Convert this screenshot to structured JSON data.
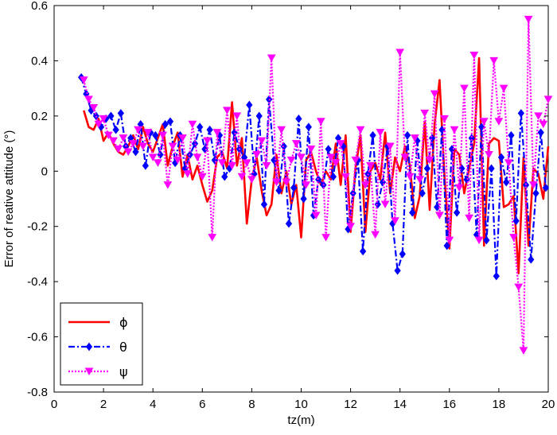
{
  "chart_data": {
    "type": "line",
    "title": "",
    "xlabel": "tz(m)",
    "ylabel": "Error of reative attitude (°)",
    "xlim": [
      0,
      20
    ],
    "ylim": [
      -0.8,
      0.6
    ],
    "xticks": [
      "0",
      "2",
      "4",
      "6",
      "8",
      "10",
      "12",
      "14",
      "16",
      "18",
      "20"
    ],
    "yticks": [
      "0.6",
      "0.4",
      "0.2",
      "0",
      "-0.2",
      "-0.4",
      "-0.6",
      "-0.8"
    ],
    "grid": false,
    "legend": "bottom-left",
    "series": [
      {
        "name": "ϕ",
        "color": "#ff0000",
        "style": "solid",
        "marker": "none",
        "x": [
          1.2,
          1.4,
          1.6,
          1.8,
          2.0,
          2.2,
          2.4,
          2.6,
          2.8,
          3.0,
          3.2,
          3.4,
          3.6,
          3.8,
          4.0,
          4.2,
          4.4,
          4.6,
          4.8,
          5.0,
          5.2,
          5.4,
          5.6,
          5.8,
          6.0,
          6.2,
          6.4,
          6.6,
          6.8,
          7.0,
          7.2,
          7.4,
          7.6,
          7.8,
          8.0,
          8.2,
          8.4,
          8.6,
          8.8,
          9.0,
          9.2,
          9.4,
          9.6,
          9.8,
          10.0,
          10.2,
          10.4,
          10.6,
          10.8,
          11.0,
          11.2,
          11.4,
          11.6,
          11.8,
          12.0,
          12.2,
          12.4,
          12.6,
          12.8,
          13.0,
          13.2,
          13.4,
          13.6,
          13.8,
          14.0,
          14.2,
          14.4,
          14.6,
          14.8,
          15.0,
          15.2,
          15.4,
          15.6,
          15.8,
          16.0,
          16.2,
          16.4,
          16.6,
          16.8,
          17.0,
          17.2,
          17.4,
          17.6,
          17.8,
          18.0,
          18.2,
          18.4,
          18.6,
          18.8,
          19.0,
          19.2,
          19.4,
          19.6,
          19.8,
          20.0
        ],
        "values": [
          0.22,
          0.16,
          0.15,
          0.19,
          0.11,
          0.14,
          0.1,
          0.07,
          0.06,
          0.09,
          0.13,
          0.08,
          0.16,
          0.1,
          0.07,
          0.12,
          0.17,
          0.02,
          0.09,
          0.14,
          -0.02,
          0.06,
          -0.03,
          0.02,
          -0.05,
          -0.11,
          -0.07,
          0.05,
          0.07,
          0.01,
          0.25,
          0.02,
          0.12,
          -0.19,
          -0.03,
          0.05,
          -0.07,
          -0.16,
          -0.12,
          0.06,
          -0.08,
          0.0,
          -0.12,
          -0.05,
          -0.24,
          0.04,
          0.07,
          0.0,
          -0.05,
          0.0,
          -0.03,
          0.1,
          -0.05,
          0.13,
          -0.22,
          0.01,
          0.13,
          -0.22,
          0.0,
          0.03,
          -0.03,
          0.14,
          -0.08,
          0.05,
          0.0,
          0.09,
          0.02,
          -0.17,
          -0.09,
          0.18,
          -0.14,
          0.17,
          0.33,
          -0.02,
          -0.28,
          0.08,
          0.06,
          -0.08,
          0.01,
          0.1,
          0.41,
          -0.27,
          0.1,
          0.12,
          0.11,
          -0.13,
          -0.12,
          -0.09,
          -0.37,
          0.05,
          -0.27,
          0.01,
          -0.01,
          -0.1,
          0.09
        ]
      },
      {
        "name": "θ",
        "color": "#0000ff",
        "style": "dashdot",
        "marker": "diamond",
        "x": [
          1.1,
          1.3,
          1.5,
          1.7,
          1.9,
          2.1,
          2.3,
          2.5,
          2.7,
          2.9,
          3.1,
          3.3,
          3.5,
          3.7,
          3.9,
          4.1,
          4.3,
          4.5,
          4.7,
          4.9,
          5.1,
          5.3,
          5.5,
          5.7,
          5.9,
          6.1,
          6.3,
          6.5,
          6.7,
          6.9,
          7.1,
          7.3,
          7.5,
          7.7,
          7.9,
          8.1,
          8.3,
          8.5,
          8.7,
          8.9,
          9.1,
          9.3,
          9.5,
          9.7,
          9.9,
          10.1,
          10.3,
          10.5,
          10.7,
          10.9,
          11.1,
          11.3,
          11.5,
          11.7,
          11.9,
          12.1,
          12.3,
          12.5,
          12.7,
          12.9,
          13.1,
          13.3,
          13.5,
          13.7,
          13.9,
          14.1,
          14.3,
          14.5,
          14.7,
          14.9,
          15.1,
          15.3,
          15.5,
          15.7,
          15.9,
          16.1,
          16.3,
          16.5,
          16.7,
          16.9,
          17.1,
          17.3,
          17.5,
          17.7,
          17.9,
          18.1,
          18.3,
          18.5,
          18.7,
          18.9,
          19.1,
          19.3,
          19.5,
          19.7,
          19.9
        ],
        "values": [
          0.34,
          0.28,
          0.22,
          0.2,
          0.16,
          0.19,
          0.2,
          0.15,
          0.21,
          0.09,
          0.12,
          0.07,
          0.17,
          0.02,
          0.14,
          0.13,
          0.06,
          0.17,
          0.18,
          0.03,
          0.13,
          0.01,
          0.06,
          0.1,
          0.16,
          0.08,
          0.15,
          0.04,
          0.13,
          -0.02,
          0.01,
          0.14,
          0.08,
          0.05,
          0.24,
          -0.01,
          0.2,
          -0.12,
          0.26,
          0.04,
          -0.07,
          0.09,
          -0.19,
          -0.06,
          0.19,
          -0.1,
          0.16,
          -0.16,
          -0.03,
          -0.05,
          0.08,
          -0.02,
          0.12,
          0.09,
          -0.21,
          -0.08,
          0.04,
          -0.29,
          -0.01,
          0.13,
          -0.12,
          -0.04,
          0.09,
          -0.19,
          -0.36,
          -0.3,
          0.13,
          -0.15,
          0.11,
          -0.08,
          0.01,
          0.12,
          -0.13,
          0.15,
          -0.27,
          0.08,
          -0.15,
          0.01,
          -0.03,
          0.12,
          -0.23,
          0.16,
          -0.25,
          0.01,
          -0.38,
          0.05,
          -0.04,
          0.13,
          -0.18,
          0.21,
          -0.05,
          -0.32,
          -0.08,
          0.14,
          -0.06
        ]
      },
      {
        "name": "ψ",
        "color": "#ff00ff",
        "style": "dotted",
        "marker": "triangle-down",
        "x": [
          1.2,
          1.4,
          1.6,
          1.8,
          2.0,
          2.2,
          2.4,
          2.6,
          2.8,
          3.0,
          3.2,
          3.4,
          3.6,
          3.8,
          4.0,
          4.2,
          4.4,
          4.6,
          4.8,
          5.0,
          5.2,
          5.4,
          5.6,
          5.8,
          6.0,
          6.2,
          6.4,
          6.6,
          6.8,
          7.0,
          7.2,
          7.4,
          7.6,
          7.8,
          8.0,
          8.2,
          8.4,
          8.6,
          8.8,
          9.0,
          9.2,
          9.4,
          9.6,
          9.8,
          10.0,
          10.2,
          10.4,
          10.6,
          10.8,
          11.0,
          11.2,
          11.4,
          11.6,
          11.8,
          12.0,
          12.2,
          12.4,
          12.6,
          12.8,
          13.0,
          13.2,
          13.4,
          13.6,
          13.8,
          14.0,
          14.2,
          14.4,
          14.6,
          14.8,
          15.0,
          15.2,
          15.4,
          15.6,
          15.8,
          16.0,
          16.2,
          16.4,
          16.6,
          16.8,
          17.0,
          17.2,
          17.4,
          17.6,
          17.8,
          18.0,
          18.2,
          18.4,
          18.6,
          18.8,
          19.0,
          19.2,
          19.4,
          19.6,
          19.8,
          20.0
        ],
        "values": [
          0.33,
          0.26,
          0.23,
          0.17,
          0.19,
          0.13,
          0.11,
          0.08,
          0.12,
          0.07,
          0.1,
          0.15,
          0.09,
          0.14,
          0.05,
          0.03,
          0.13,
          -0.05,
          0.09,
          0.04,
          0.12,
          -0.01,
          0.17,
          0.05,
          -0.02,
          0.11,
          -0.24,
          0.14,
          0.03,
          0.22,
          0.02,
          0.2,
          -0.02,
          0.03,
          -0.03,
          0.06,
          0.11,
          0.02,
          0.41,
          -0.04,
          0.15,
          -0.04,
          0.04,
          0.1,
          0.05,
          -0.05,
          0.08,
          -0.16,
          0.18,
          -0.24,
          0.05,
          0.03,
          0.1,
          -0.02,
          -0.2,
          0.04,
          0.15,
          -0.05,
          0.02,
          -0.23,
          0.14,
          -0.12,
          0.09,
          -0.18,
          0.43,
          0.05,
          -0.02,
          0.12,
          -0.03,
          0.21,
          0.04,
          0.28,
          -0.16,
          0.19,
          -0.25,
          0.15,
          -0.06,
          0.3,
          -0.17,
          0.42,
          -0.25,
          0.18,
          0.06,
          0.4,
          0.18,
          0.3,
          0.03,
          -0.24,
          -0.42,
          -0.65,
          0.55,
          -0.05,
          0.2,
          0.17,
          0.26
        ]
      }
    ]
  }
}
